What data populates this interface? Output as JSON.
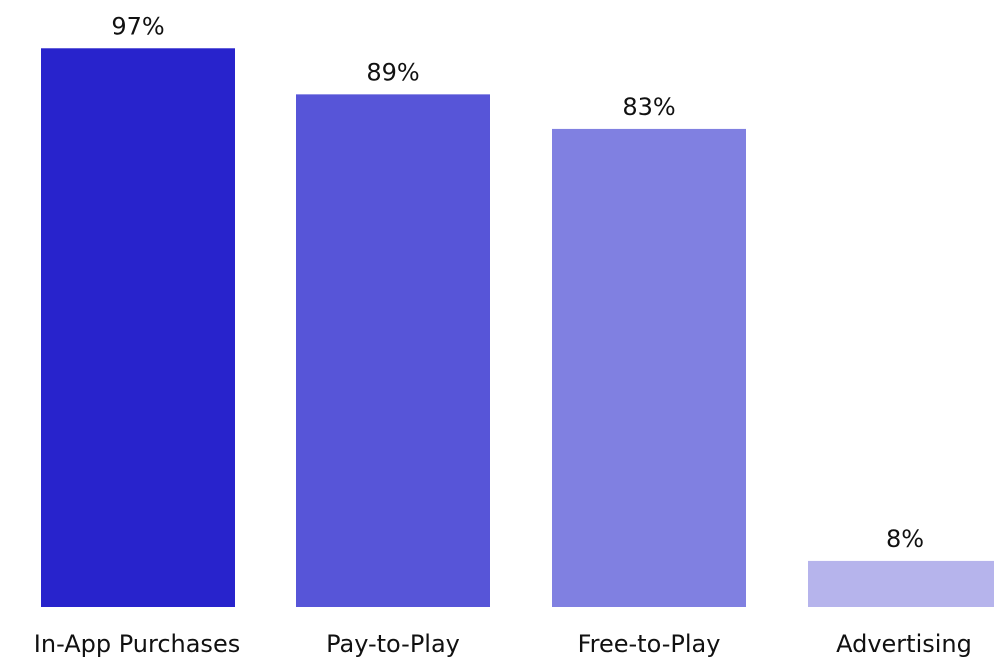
{
  "chart_data": {
    "type": "bar",
    "categories": [
      "In-App Purchases",
      "Pay-to-Play",
      "Free-to-Play",
      "Advertising"
    ],
    "values": [
      97,
      89,
      83,
      8
    ],
    "value_labels": [
      "97%",
      "89%",
      "83%",
      "8%"
    ],
    "colors": [
      "#2823cc",
      "#5755d8",
      "#8080e1",
      "#b6b4ec"
    ],
    "ylim": [
      0,
      100
    ],
    "grid": false,
    "legend": "none"
  }
}
